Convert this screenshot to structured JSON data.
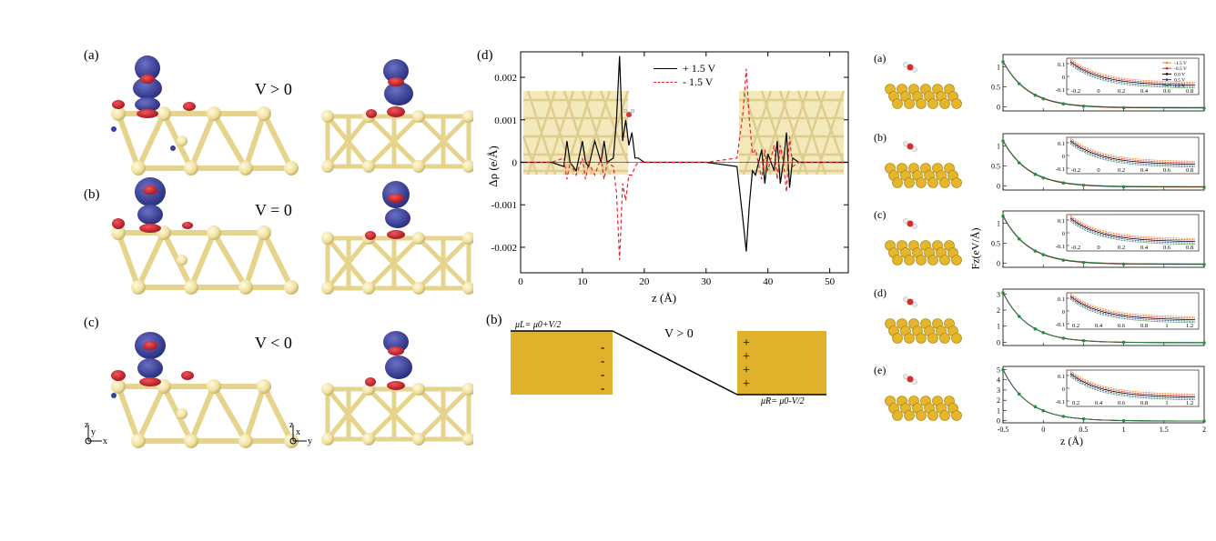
{
  "left_panel": {
    "rows": [
      {
        "label": "(a)",
        "voltage": "V > 0"
      },
      {
        "label": "(b)",
        "voltage": "V = 0"
      },
      {
        "label": "(c)",
        "voltage": "V < 0"
      }
    ],
    "axes_xz": {
      "z": "z",
      "y": "y",
      "x": "x"
    },
    "axes_yz": {
      "z": "z",
      "x": "x",
      "y": "y"
    },
    "colors": {
      "gold_atom": "#efe0a0",
      "bond": "#e6d38c",
      "negative_density": "#3a3f9a",
      "positive_density": "#c8202a"
    }
  },
  "middle_panel": {
    "label_d": "(d)",
    "label_b": "(b)",
    "ylabel": "Δρ (e/Å)",
    "xlabel": "z (Å)",
    "legend": [
      "+ 1.5 V",
      "- 1.5 V"
    ],
    "yticks": [
      "0.002",
      "0.001",
      "0",
      "-0.001",
      "-0.002"
    ],
    "xticks": [
      "0",
      "10",
      "20",
      "30",
      "40",
      "50"
    ],
    "schematic": {
      "muL": "μL= μ0+V/2",
      "muR": "μR= μ0-V/2",
      "voltage": "V > 0",
      "left_signs": [
        "-",
        "-",
        "-",
        "-"
      ],
      "right_signs": [
        "+",
        "+",
        "+",
        "+"
      ],
      "electrode_color": "#e0b22c"
    }
  },
  "chart_data": [
    {
      "type": "line",
      "title": "",
      "xlabel": "z (Å)",
      "ylabel": "Δρ (e/Å)",
      "xlim": [
        0,
        53
      ],
      "ylim": [
        -0.0026,
        0.0026
      ],
      "series": [
        {
          "name": "+ 1.5 V",
          "color": "#000000",
          "x": [
            0,
            5,
            7,
            7.5,
            8,
            9,
            10,
            10.5,
            11,
            12,
            13,
            13.5,
            14,
            15,
            15.5,
            16,
            16.5,
            17,
            17.5,
            18,
            18.5,
            19,
            20,
            30,
            35,
            36,
            36.5,
            37,
            37.5,
            38,
            39,
            39.5,
            40,
            41,
            41.5,
            42,
            42.5,
            43,
            43.5,
            44,
            45,
            53
          ],
          "y": [
            0,
            0,
            -0.0001,
            0.0005,
            0,
            -0.0002,
            0.0005,
            0,
            -0.0001,
            0.0005,
            0,
            0.0005,
            0,
            0.0001,
            0.001,
            0.0025,
            0.0005,
            0.001,
            0.0004,
            0.0007,
            0.0001,
            0.0001,
            0,
            0,
            -0.0001,
            -0.0014,
            -0.0021,
            -0.001,
            -0.0002,
            -0.0003,
            0.0003,
            -0.0005,
            0.0002,
            -0.0002,
            0.0005,
            -0.0005,
            0,
            0.0007,
            -0.0006,
            0.0001,
            0,
            0
          ]
        },
        {
          "name": "- 1.5 V",
          "color": "#e8232b",
          "x": [
            0,
            5,
            7,
            7.5,
            8,
            9,
            10,
            10.5,
            11,
            12,
            13,
            13.5,
            14,
            15,
            15.5,
            16,
            16.5,
            17,
            17.5,
            18,
            18.5,
            19,
            20,
            30,
            35,
            36,
            36.5,
            37,
            37.5,
            38,
            39,
            39.5,
            40,
            41,
            41.5,
            42,
            42.5,
            43,
            43.5,
            44,
            45,
            53
          ],
          "y": [
            0,
            0,
            0.0001,
            -0.0004,
            0,
            -0.0003,
            0.0001,
            -0.0004,
            0,
            -0.0003,
            0.0001,
            -0.0004,
            0,
            -0.0001,
            -0.0007,
            -0.0023,
            -0.0005,
            -0.0009,
            -0.0003,
            -0.0003,
            -0.0001,
            0,
            0,
            0,
            0.0001,
            0.0012,
            0.0022,
            0.001,
            0.0002,
            0.0003,
            -0.0004,
            0.0003,
            -0.0002,
            0.0004,
            -0.0004,
            0.0004,
            0,
            -0.0007,
            0.0006,
            -0.0001,
            0,
            0
          ]
        }
      ]
    },
    {
      "type": "line",
      "panels": [
        {
          "label": "(a)",
          "ylim": [
            -0.1,
            1.3
          ],
          "yticks": [
            "0",
            "0.5",
            "1"
          ],
          "inset": {
            "xticks": [
              "-0.2",
              "0",
              "0.2",
              "0.4",
              "0.6",
              "0.8"
            ],
            "yticks": [
              "0.1",
              "0",
              "-0.1"
            ],
            "legend": [
              "-1.5 V",
              "-0.5 V",
              "0.0 V",
              "0.5 V",
              "1.5 V"
            ]
          }
        },
        {
          "label": "(b)",
          "ylim": [
            -0.1,
            1.3
          ],
          "yticks": [
            "0",
            "0.5",
            "1"
          ],
          "inset": {
            "xticks": [
              "-0.2",
              "0",
              "0.2",
              "0.4",
              "0.6",
              "0.8"
            ],
            "yticks": [
              "0.1",
              "0",
              "-0.1"
            ]
          }
        },
        {
          "label": "(c)",
          "ylim": [
            -0.1,
            1.3
          ],
          "yticks": [
            "0",
            "0.5",
            "1"
          ],
          "inset": {
            "xticks": [
              "-0.2",
              "0",
              "0.2",
              "0.4",
              "0.6",
              "0.8"
            ],
            "yticks": [
              "0.1",
              "0",
              "-0.1"
            ]
          }
        },
        {
          "label": "(d)",
          "ylim": [
            -0.2,
            3.3
          ],
          "yticks": [
            "0",
            "1",
            "2",
            "3"
          ],
          "inset": {
            "xticks": [
              "0.2",
              "0.4",
              "0.6",
              "0.8",
              "1",
              "1.2"
            ],
            "yticks": [
              "0.1",
              "0",
              "-0.1"
            ]
          }
        },
        {
          "label": "(e)",
          "ylim": [
            -0.2,
            5.3
          ],
          "yticks": [
            "0",
            "1",
            "2",
            "3",
            "4",
            "5"
          ],
          "inset": {
            "xticks": [
              "0.2",
              "0.4",
              "0.6",
              "0.8",
              "1",
              "1.2"
            ],
            "yticks": [
              "0.1",
              "0",
              "-0.1"
            ]
          }
        }
      ],
      "xlabel": "z (Å)",
      "ylabel": "Fz(eV/Å)",
      "xticks": [
        "-0.5",
        "0",
        "0.5",
        "1",
        "1.5",
        "2"
      ],
      "xlim": [
        -0.5,
        2
      ],
      "series": [
        {
          "name": "-1.5 V",
          "color": "#f08a24"
        },
        {
          "name": "-0.5 V",
          "color": "#e8232b"
        },
        {
          "name": "0.0 V",
          "color": "#000000"
        },
        {
          "name": "0.5 V",
          "color": "#2c3b9c"
        },
        {
          "name": "1.5 V",
          "color": "#2e8b3a"
        }
      ]
    }
  ]
}
